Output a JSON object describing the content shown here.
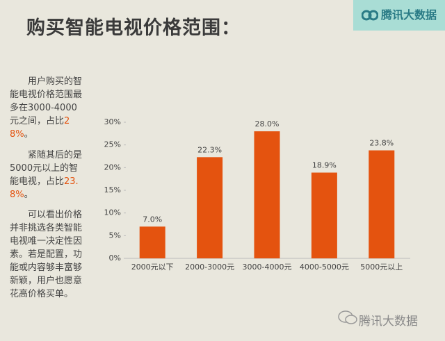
{
  "title": "购买智能电视价格范围：",
  "logo": "腾讯大数据",
  "watermark": "腾讯大数据",
  "notes": [
    {
      "text": "用户购买的智能电视价格范围最多在3000-4000元之间，占比",
      "highlight": "28%",
      "end": "。"
    },
    {
      "text": "紧随其后的是5000元以上的智能电视，占比",
      "highlight": "23.8%",
      "end": "。"
    },
    {
      "text": "可以看出价格并非挑选各类智能电视唯一决定性因素。若是配置，功能或内容够丰富够新颖，用户也愿意花高价格买单。"
    }
  ],
  "chart_data": {
    "type": "bar",
    "color": "#e4530f",
    "categories": [
      "2000元以下",
      "2000-3000元",
      "3000-4000元",
      "4000-5000元",
      "5000元以上"
    ],
    "values": [
      7.0,
      22.3,
      28.0,
      18.9,
      23.8
    ],
    "value_labels": [
      "7.0%",
      "22.3%",
      "28.0%",
      "18.9%",
      "23.8%"
    ],
    "ylim": [
      0,
      30
    ],
    "yticks": [
      {
        "value": 0,
        "label": "0%"
      },
      {
        "value": 5,
        "label": "5%"
      },
      {
        "value": 10,
        "label": "10%"
      },
      {
        "value": 15,
        "label": "15%"
      },
      {
        "value": 20,
        "label": "20%"
      },
      {
        "value": 25,
        "label": "25%"
      },
      {
        "value": 30,
        "label": "30%"
      }
    ]
  }
}
